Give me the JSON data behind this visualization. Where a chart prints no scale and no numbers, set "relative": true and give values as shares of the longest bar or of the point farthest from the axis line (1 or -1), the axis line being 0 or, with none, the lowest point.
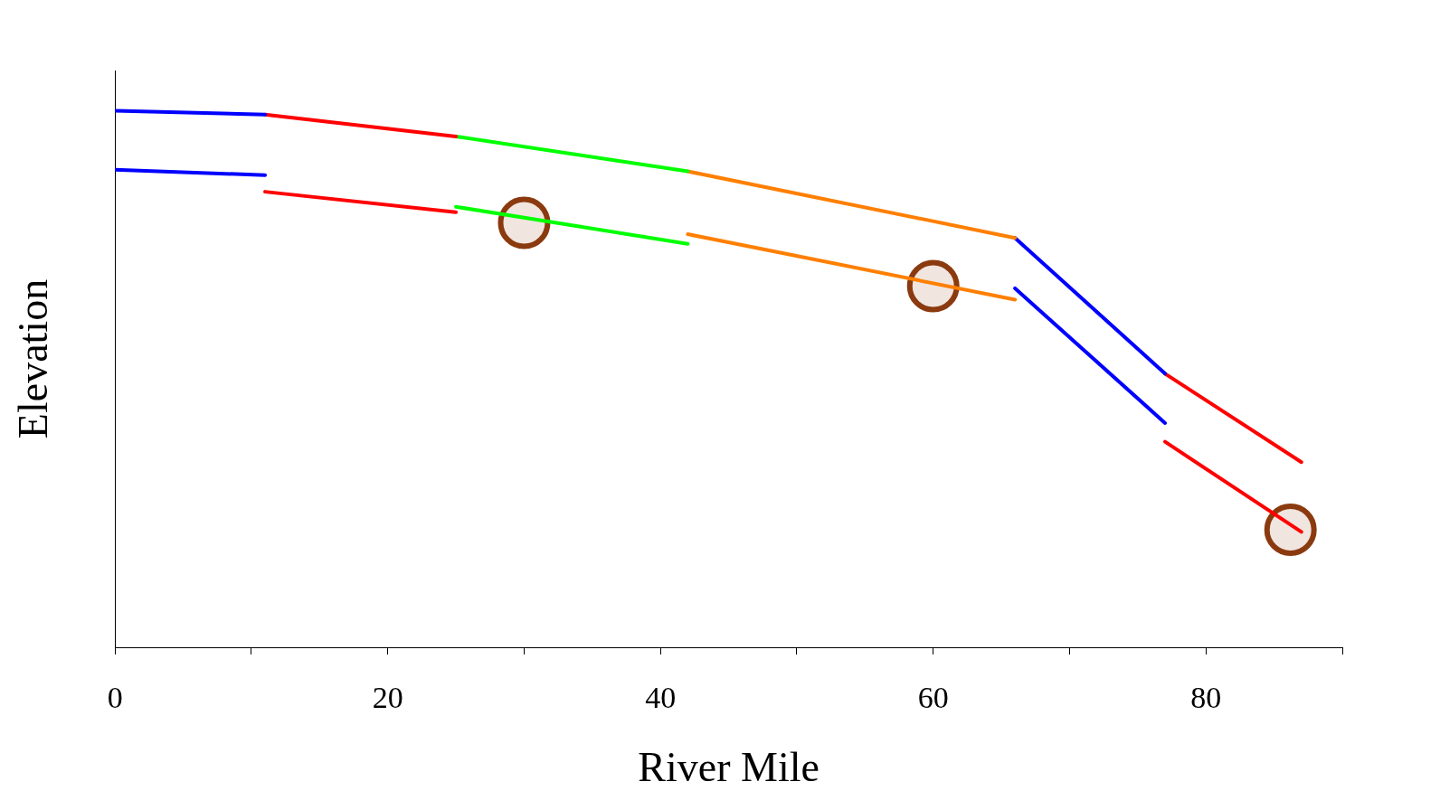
{
  "chart_data": {
    "type": "line",
    "relative": true,
    "xlabel": "River Mile",
    "ylabel": "Elevation",
    "xlim": [
      0,
      90
    ],
    "xticks": [
      0,
      {
        "value": 10,
        "label": null
      },
      20,
      {
        "value": 30,
        "label": null
      },
      40,
      {
        "value": 50,
        "label": null
      },
      60,
      {
        "value": 70,
        "label": null
      },
      80,
      {
        "value": 90,
        "label": null
      }
    ],
    "marker": "none",
    "legend": false,
    "series": [
      {
        "color": "#0000ff",
        "x": [
          0,
          11
        ],
        "values": [
          1.0,
          0.993
        ]
      },
      {
        "color": "#ff0000",
        "x": [
          11,
          25
        ],
        "values": [
          0.993,
          0.952
        ]
      },
      {
        "color": "#00ff00",
        "x": [
          25,
          42
        ],
        "values": [
          0.952,
          0.887
        ]
      },
      {
        "color": "#ff7f00",
        "x": [
          42,
          66
        ],
        "values": [
          0.887,
          0.763
        ]
      },
      {
        "color": "#0000ff",
        "x": [
          66,
          77
        ],
        "values": [
          0.763,
          0.51
        ]
      },
      {
        "color": "#ff0000",
        "x": [
          77,
          87
        ],
        "values": [
          0.51,
          0.345
        ]
      },
      {
        "color": "#0000ff",
        "x": [
          0,
          11
        ],
        "values": [
          0.89,
          0.88
        ]
      },
      {
        "color": "#ff0000",
        "x": [
          11,
          25
        ],
        "values": [
          0.849,
          0.811
        ]
      },
      {
        "color": "#00ff00",
        "x": [
          25,
          42
        ],
        "values": [
          0.821,
          0.752
        ]
      },
      {
        "color": "#ff7f00",
        "x": [
          42,
          66
        ],
        "values": [
          0.77,
          0.648
        ]
      },
      {
        "color": "#0000ff",
        "x": [
          66,
          77
        ],
        "values": [
          0.669,
          0.418
        ]
      },
      {
        "color": "#ff0000",
        "x": [
          77,
          87
        ],
        "values": [
          0.383,
          0.215
        ]
      },
      {
        "type": "scatter",
        "marker": "circle",
        "color": "#8b3a0f",
        "x": [
          30,
          60,
          86.2
        ],
        "values": [
          0.791,
          0.673,
          0.219
        ]
      }
    ]
  }
}
